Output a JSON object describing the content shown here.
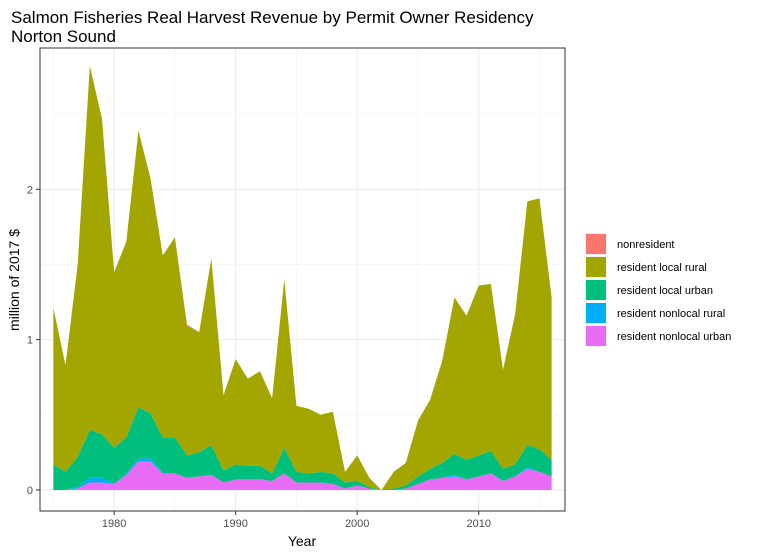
{
  "chart_data": {
    "type": "area",
    "stacked": true,
    "title": "Salmon Fisheries Real Harvest Revenue by Permit Owner Residency",
    "subtitle": "Norton Sound",
    "xlabel": "Year",
    "ylabel": "million of 2017 $",
    "xlim": [
      1973.9,
      2017.1
    ],
    "ylim": [
      -0.14,
      2.94
    ],
    "x_ticks": [
      1980,
      1990,
      2000,
      2010
    ],
    "x_tick_labels": [
      "1980",
      "1990",
      "2000",
      "2010"
    ],
    "y_ticks": [
      0,
      1,
      2
    ],
    "y_tick_labels": [
      "0",
      "1",
      "2"
    ],
    "grid": true,
    "legend_position": "right",
    "x": [
      1975,
      1976,
      1977,
      1978,
      1979,
      1980,
      1981,
      1982,
      1983,
      1984,
      1985,
      1986,
      1987,
      1988,
      1989,
      1990,
      1991,
      1992,
      1993,
      1994,
      1995,
      1996,
      1997,
      1998,
      1999,
      2000,
      2001,
      2002,
      2003,
      2004,
      2005,
      2006,
      2007,
      2008,
      2009,
      2010,
      2011,
      2012,
      2013,
      2014,
      2015,
      2016
    ],
    "series": [
      {
        "name": "resident nonlocal urban",
        "color": "#E76BF3",
        "values": [
          0.0,
          0.0,
          0.01,
          0.05,
          0.05,
          0.04,
          0.1,
          0.19,
          0.19,
          0.11,
          0.11,
          0.08,
          0.09,
          0.1,
          0.05,
          0.07,
          0.07,
          0.07,
          0.06,
          0.11,
          0.05,
          0.05,
          0.05,
          0.04,
          0.01,
          0.03,
          0.01,
          0.0,
          0.0,
          0.01,
          0.04,
          0.07,
          0.08,
          0.09,
          0.07,
          0.09,
          0.11,
          0.06,
          0.09,
          0.14,
          0.12,
          0.09
        ]
      },
      {
        "name": "resident nonlocal rural",
        "color": "#00B0F6",
        "values": [
          0.0,
          0.0,
          0.01,
          0.03,
          0.03,
          0.0,
          0.01,
          0.02,
          0.02,
          0.0,
          0.0,
          0.0,
          0.0,
          0.0,
          0.0,
          0.0,
          0.0,
          0.0,
          0.0,
          0.0,
          0.0,
          0.0,
          0.0,
          0.0,
          0.0,
          0.0,
          0.0,
          0.0,
          0.0,
          0.0,
          0.0,
          0.0,
          0.0,
          0.01,
          0.0,
          0.0,
          0.0,
          0.0,
          0.0,
          0.01,
          0.0,
          0.0
        ]
      },
      {
        "name": "resident local urban",
        "color": "#00BF7D",
        "values": [
          0.17,
          0.12,
          0.2,
          0.32,
          0.29,
          0.24,
          0.24,
          0.34,
          0.3,
          0.24,
          0.24,
          0.15,
          0.16,
          0.2,
          0.08,
          0.1,
          0.09,
          0.09,
          0.05,
          0.17,
          0.07,
          0.06,
          0.07,
          0.07,
          0.04,
          0.03,
          0.01,
          0.0,
          0.01,
          0.02,
          0.05,
          0.07,
          0.1,
          0.14,
          0.13,
          0.14,
          0.15,
          0.08,
          0.08,
          0.15,
          0.15,
          0.11
        ]
      },
      {
        "name": "resident local rural",
        "color": "#A3A500",
        "values": [
          1.04,
          0.71,
          1.28,
          2.42,
          2.1,
          1.17,
          1.3,
          1.84,
          1.56,
          1.21,
          1.33,
          0.86,
          0.8,
          1.24,
          0.5,
          0.7,
          0.58,
          0.63,
          0.5,
          1.12,
          0.44,
          0.43,
          0.38,
          0.41,
          0.07,
          0.17,
          0.06,
          0.0,
          0.11,
          0.15,
          0.37,
          0.46,
          0.68,
          1.04,
          0.96,
          1.13,
          1.11,
          0.66,
          1.0,
          1.62,
          1.67,
          1.08
        ]
      },
      {
        "name": "nonresident",
        "color": "#F8766D",
        "values": [
          0.0,
          0.0,
          0.0,
          0.0,
          0.0,
          0.0,
          0.0,
          0.0,
          0.0,
          0.0,
          0.0,
          0.01,
          0.0,
          0.0,
          0.0,
          0.0,
          0.0,
          0.0,
          0.0,
          0.0,
          0.0,
          0.0,
          0.0,
          0.0,
          0.0,
          0.0,
          0.0,
          0.0,
          0.0,
          0.0,
          0.0,
          0.0,
          0.0,
          0.0,
          0.0,
          0.0,
          0.0,
          0.0,
          0.0,
          0.0,
          0.0,
          0.0
        ]
      }
    ],
    "legend": [
      {
        "label": "nonresident",
        "color": "#F8766D"
      },
      {
        "label": "resident local rural",
        "color": "#A3A500"
      },
      {
        "label": "resident local urban",
        "color": "#00BF7D"
      },
      {
        "label": "resident nonlocal rural",
        "color": "#00B0F6"
      },
      {
        "label": "resident nonlocal urban",
        "color": "#E76BF3"
      }
    ],
    "colors": {
      "panel_border": "#333333",
      "grid_major": "#ebebeb",
      "grid_minor": "#f5f5f5",
      "tick_label": "#4d4d4d"
    }
  }
}
